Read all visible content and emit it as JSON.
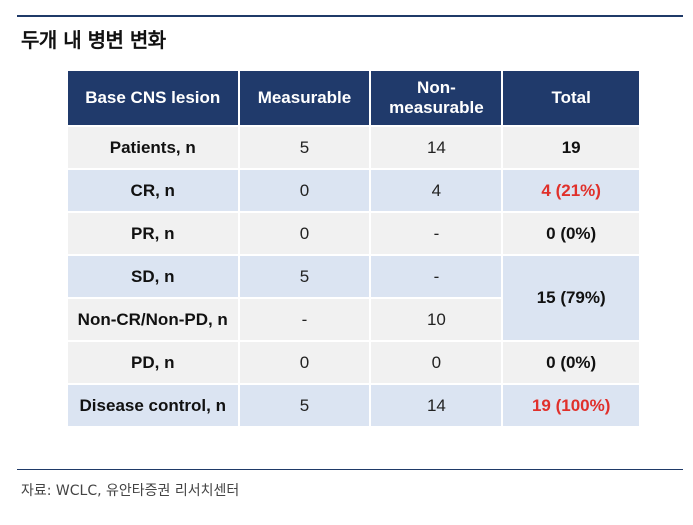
{
  "title": "두개 내 병변 변화",
  "table": {
    "headers": [
      "Base CNS lesion",
      "Measurable",
      "Non-\nmeasurable",
      "Total"
    ],
    "rows": [
      {
        "label": "Patients, n",
        "measurable": "5",
        "non_measurable": "14",
        "total": "19"
      },
      {
        "label": "CR, n",
        "measurable": "0",
        "non_measurable": "4",
        "total": "4 (21%)"
      },
      {
        "label": "PR, n",
        "measurable": "0",
        "non_measurable": "-",
        "total": "0 (0%)"
      },
      {
        "label": "SD, n",
        "measurable": "5",
        "non_measurable": "-",
        "total": "15 (79%)"
      },
      {
        "label": "Non-CR/Non-PD, n",
        "measurable": "-",
        "non_measurable": "10",
        "total": "15 (79%)"
      },
      {
        "label": "PD, n",
        "measurable": "0",
        "non_measurable": "0",
        "total": "0 (0%)"
      },
      {
        "label": "Disease control, n",
        "measurable": "5",
        "non_measurable": "14",
        "total": "19 (100%)"
      }
    ]
  },
  "colors": {
    "header_bg": "#203a6b",
    "highlight": "#e0302b",
    "row_odd": "#f1f1f1",
    "row_even": "#dbe4f2"
  },
  "source": "자료: WCLC, 유안타증권 리서치센터"
}
